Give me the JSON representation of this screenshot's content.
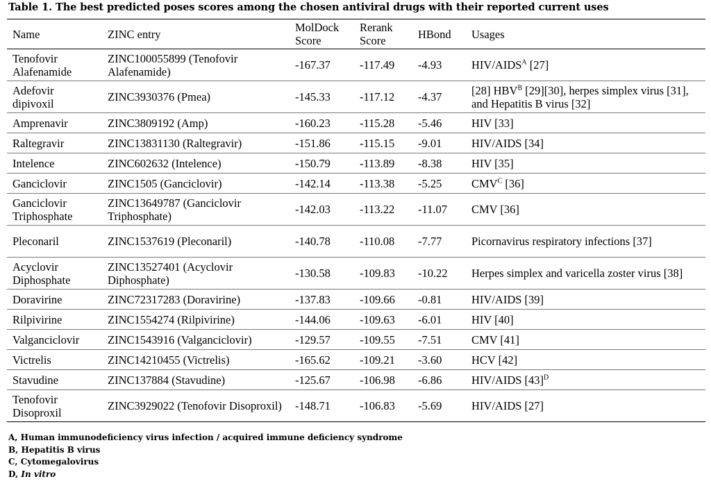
{
  "caption": "Table 1. The best predicted poses scores among the chosen antiviral drugs with their reported current uses",
  "headers": {
    "name": "Name",
    "zinc": "ZINC entry",
    "moldock": "MolDock Score",
    "rerank": "Rerank Score",
    "hbond": "HBond",
    "usages": "Usages"
  },
  "rows": [
    {
      "name": "Tenofovir Alafenamide",
      "zinc": "ZINC100055899 (Tenofovir Alafenamide)",
      "moldock": "-167.37",
      "rerank": "-117.49",
      "hbond": "-4.93",
      "usage": "HIV/AIDS",
      "usage_sup": "A",
      "usage_rest": " [27]"
    },
    {
      "name": "Adefovir dipivoxil",
      "zinc": "ZINC3930376 (Pmea)",
      "moldock": "-145.33",
      "rerank": "-117.12",
      "hbond": "-4.37",
      "usage": "[28] HBV",
      "usage_sup": "B",
      "usage_rest": " [29][30],  herpes simplex virus [31], and Hepatitis B virus [32]"
    },
    {
      "name": "Amprenavir",
      "zinc": "ZINC3809192 (Amp)",
      "moldock": "-160.23",
      "rerank": "-115.28",
      "hbond": "-5.46",
      "usage": "HIV [33]",
      "usage_sup": "",
      "usage_rest": ""
    },
    {
      "name": "Raltegravir",
      "zinc": "ZINC13831130 (Raltegravir)",
      "moldock": "-151.86",
      "rerank": "-115.15",
      "hbond": "-9.01",
      "usage": "HIV/AIDS [34]",
      "usage_sup": "",
      "usage_rest": ""
    },
    {
      "name": "Intelence",
      "zinc": "ZINC602632 (Intelence)",
      "moldock": "-150.79",
      "rerank": "-113.89",
      "hbond": "-8.38",
      "usage": "HIV [35]",
      "usage_sup": "",
      "usage_rest": ""
    },
    {
      "name": "Ganciclovir",
      "zinc": "ZINC1505 (Ganciclovir)",
      "moldock": "-142.14",
      "rerank": "-113.38",
      "hbond": "-5.25",
      "usage": "CMV",
      "usage_sup": "C",
      "usage_rest": " [36]"
    },
    {
      "name": "Ganciclovir Triphosphate",
      "zinc": "ZINC13649787 (Ganciclovir Triphosphate)",
      "moldock": "-142.03",
      "rerank": "-113.22",
      "hbond": "-11.07",
      "usage": "CMV [36]",
      "usage_sup": "",
      "usage_rest": ""
    },
    {
      "name": "Pleconaril",
      "zinc": "ZINC1537619 (Pleconaril)",
      "moldock": "-140.78",
      "rerank": "-110.08",
      "hbond": "-7.77",
      "usage": " Picornavirus respiratory infections [37]",
      "usage_sup": "",
      "usage_rest": ""
    },
    {
      "name": "Acyclovir Diphosphate",
      "zinc": "ZINC13527401 (Acyclovir Diphosphate)",
      "moldock": "-130.58",
      "rerank": "-109.83",
      "hbond": "-10.22",
      "usage": "Herpes simplex and varicella zoster virus [38]",
      "usage_sup": "",
      "usage_rest": ""
    },
    {
      "name": "Doravirine",
      "zinc": "ZINC72317283 (Doravirine)",
      "moldock": "-137.83",
      "rerank": "-109.66",
      "hbond": "-0.81",
      "usage": "HIV/AIDS [39]",
      "usage_sup": "",
      "usage_rest": ""
    },
    {
      "name": "Rilpivirine",
      "zinc": "ZINC1554274 (Rilpivirine)",
      "moldock": "-144.06",
      "rerank": "-109.63",
      "hbond": "-6.01",
      "usage": "HIV [40]",
      "usage_sup": "",
      "usage_rest": ""
    },
    {
      "name": "Valganciclovir",
      "zinc": "ZINC1543916 (Valganciclovir)",
      "moldock": "-129.57",
      "rerank": "-109.55",
      "hbond": "-7.51",
      "usage": "CMV [41]",
      "usage_sup": "",
      "usage_rest": ""
    },
    {
      "name": "Victrelis",
      "zinc": "ZINC14210455 (Victrelis)",
      "moldock": "-165.62",
      "rerank": "-109.21",
      "hbond": "-3.60",
      "usage": "HCV [42]",
      "usage_sup": "",
      "usage_rest": ""
    },
    {
      "name": "Stavudine",
      "zinc": "ZINC137884 (Stavudine)",
      "moldock": "-125.67",
      "rerank": "-106.98",
      "hbond": "-6.86",
      "usage": "HIV/AIDS [43]",
      "usage_sup": "D",
      "usage_rest": ""
    },
    {
      "name": "Tenofovir Disoproxil",
      "zinc": "ZINC3929022 (Tenofovir Disoproxil)",
      "moldock": "-148.71",
      "rerank": "-106.83",
      "hbond": "-5.69",
      "usage": "HIV/AIDS [27]",
      "usage_sup": "",
      "usage_rest": ""
    }
  ],
  "footnotes": {
    "a": "A, Human immunodeficiency virus infection / acquired immune deficiency syndrome",
    "b": "B, Hepatitis B virus",
    "c": "C, Cytomegalovirus",
    "d_label": "D, ",
    "d_text": "In vitro"
  }
}
